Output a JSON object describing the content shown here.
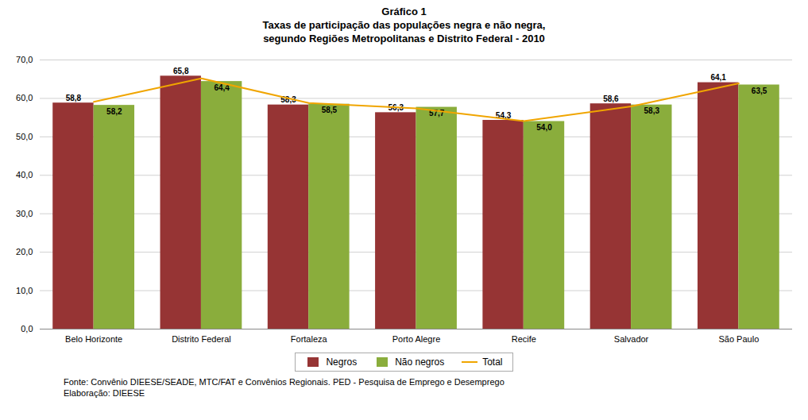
{
  "chart_data": {
    "type": "bar",
    "title": "Gráfico 1\nTaxas de participação das populações negra e não negra,\nsegundo Regiões Metropolitanas e Distrito Federal - 2010",
    "categories": [
      "Belo Horizonte",
      "Distrito Federal",
      "Fortaleza",
      "Porto Alegre",
      "Recife",
      "Salvador",
      "São Paulo"
    ],
    "series": [
      {
        "name": "Negros",
        "color": "#963434",
        "values": [
          58.8,
          65.8,
          58.3,
          56.3,
          54.3,
          58.6,
          64.1
        ],
        "value_labels": [
          "58,8",
          "65,8",
          "58,3",
          "56,3",
          "54,3",
          "58,6",
          "64,1"
        ]
      },
      {
        "name": "Não negros",
        "color": "#8aad3c",
        "values": [
          58.2,
          64.4,
          58.5,
          57.7,
          54.0,
          58.3,
          63.5
        ],
        "value_labels": [
          "58,2",
          "64,4",
          "58,5",
          "57,7",
          "54,0",
          "58,3",
          "63,5"
        ]
      },
      {
        "name": "Total",
        "type": "line",
        "color": "#f0a500",
        "values": [
          59.1,
          65.2,
          58.8,
          57.4,
          54.1,
          57.9,
          63.9
        ]
      }
    ],
    "ylim": [
      0,
      70
    ],
    "yticks": [
      {
        "value": 0,
        "label": "0,0"
      },
      {
        "value": 10,
        "label": "10,0"
      },
      {
        "value": 20,
        "label": "20,0"
      },
      {
        "value": 30,
        "label": "30,0"
      },
      {
        "value": 40,
        "label": "40,0"
      },
      {
        "value": 50,
        "label": "50,0"
      },
      {
        "value": 60,
        "label": "60,0"
      },
      {
        "value": 70,
        "label": "70,0"
      }
    ],
    "grid": true,
    "legend": "bottom",
    "data_labels": true,
    "footnotes": [
      "Fonte: Convênio DIEESE/SEADE, MTC/FAT e Convênios Regionais. PED - Pesquisa de Emprego e Desemprego",
      "Elaboração: DIEESE"
    ]
  }
}
